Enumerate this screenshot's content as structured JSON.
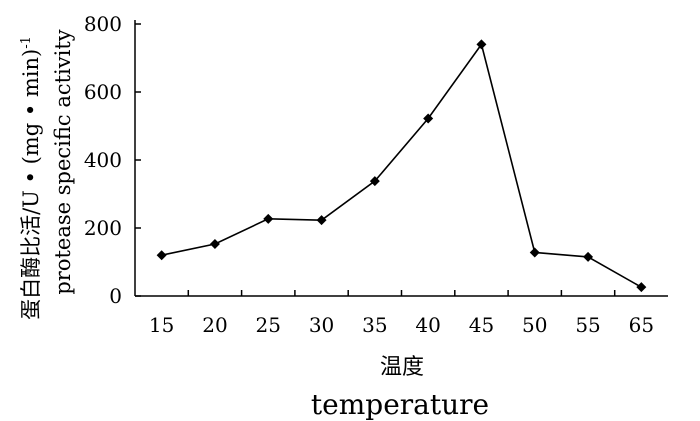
{
  "chart_data": {
    "type": "line",
    "title": "",
    "xlabel": {
      "cn": "温度",
      "en": "temperature"
    },
    "ylabel": {
      "cn": "蛋白酶比活/U • (mg • min)",
      "superscript": "-1",
      "en": "protease specific activity"
    },
    "categories": [
      "15",
      "20",
      "25",
      "30",
      "35",
      "40",
      "45",
      "50",
      "55",
      "65"
    ],
    "values": [
      120,
      153,
      227,
      223,
      338,
      522,
      740,
      128,
      115,
      26
    ],
    "ylim": [
      0,
      800
    ],
    "yticks": [
      0,
      200,
      400,
      600,
      800
    ],
    "grid": false,
    "legend": "none",
    "marker": "diamond",
    "color": "#000000"
  }
}
